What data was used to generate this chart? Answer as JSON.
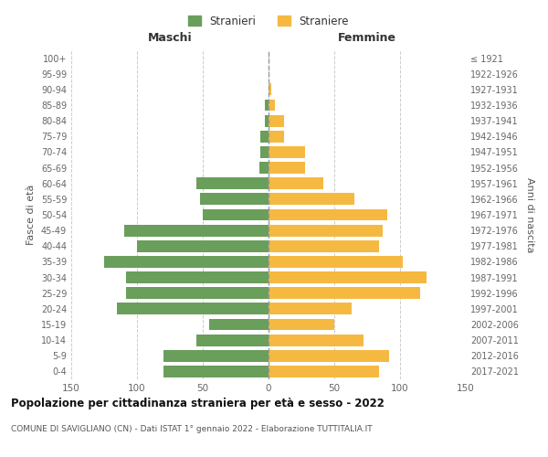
{
  "age_groups": [
    "0-4",
    "5-9",
    "10-14",
    "15-19",
    "20-24",
    "25-29",
    "30-34",
    "35-39",
    "40-44",
    "45-49",
    "50-54",
    "55-59",
    "60-64",
    "65-69",
    "70-74",
    "75-79",
    "80-84",
    "85-89",
    "90-94",
    "95-99",
    "100+"
  ],
  "birth_years": [
    "2017-2021",
    "2012-2016",
    "2007-2011",
    "2002-2006",
    "1997-2001",
    "1992-1996",
    "1987-1991",
    "1982-1986",
    "1977-1981",
    "1972-1976",
    "1967-1971",
    "1962-1966",
    "1957-1961",
    "1952-1956",
    "1947-1951",
    "1942-1946",
    "1937-1941",
    "1932-1936",
    "1927-1931",
    "1922-1926",
    "≤ 1921"
  ],
  "maschi": [
    80,
    80,
    55,
    45,
    115,
    108,
    108,
    125,
    100,
    110,
    50,
    52,
    55,
    7,
    6,
    6,
    3,
    3,
    0,
    0,
    0
  ],
  "femmine": [
    84,
    92,
    72,
    50,
    63,
    115,
    120,
    102,
    84,
    87,
    90,
    65,
    42,
    28,
    28,
    12,
    12,
    5,
    2,
    0,
    0
  ],
  "color_maschi": "#6a9e5b",
  "color_femmine": "#f5b942",
  "color_dashed_line": "#999999",
  "title": "Popolazione per cittadinanza straniera per età e sesso - 2022",
  "subtitle": "COMUNE DI SAVIGLIANO (CN) - Dati ISTAT 1° gennaio 2022 - Elaborazione TUTTITALIA.IT",
  "xlabel_left": "Maschi",
  "xlabel_right": "Femmine",
  "ylabel_left": "Fasce di età",
  "ylabel_right": "Anni di nascita",
  "legend_maschi": "Stranieri",
  "legend_femmine": "Straniere",
  "xlim": 150,
  "background_color": "#ffffff",
  "grid_color": "#cccccc"
}
